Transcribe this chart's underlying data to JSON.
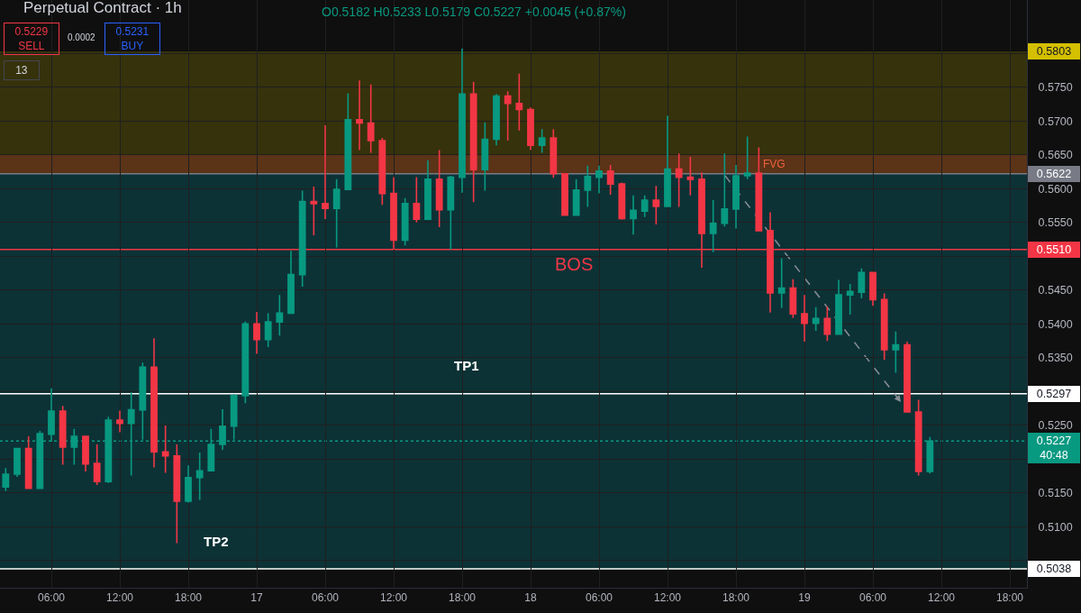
{
  "chart_data": {
    "type": "candlestick",
    "title": "Perpetual Contract · 1h",
    "categories": [
      null,
      null,
      null,
      null,
      "06:00",
      null,
      null,
      null,
      null,
      null,
      "12:00",
      null,
      null,
      null,
      null,
      null,
      "18:00",
      null,
      null,
      null,
      null,
      null,
      "17",
      null,
      null,
      null,
      null,
      null,
      "06:00",
      null,
      null,
      null,
      null,
      null,
      "12:00",
      null,
      null,
      null,
      null,
      null,
      "18:00",
      null,
      null,
      null,
      null,
      null,
      "18",
      null,
      null,
      null,
      null,
      null,
      "06:00",
      null,
      null,
      null,
      null,
      null,
      "12:00",
      null,
      null,
      null,
      null,
      null,
      "18:00",
      null,
      null,
      null,
      null,
      null,
      "19",
      null,
      null,
      null,
      null,
      null,
      "06:00",
      null,
      null,
      null,
      null,
      null,
      "12:00",
      null,
      null,
      null,
      null,
      null,
      "18:00",
      null
    ],
    "ohlc": [
      [
        0.5159,
        0.5187,
        0.5153,
        0.5178
      ],
      [
        0.5178,
        0.5216,
        0.5174,
        0.5216
      ],
      [
        0.5216,
        0.5234,
        0.5156,
        0.5157
      ],
      [
        0.5157,
        0.5242,
        0.5156,
        0.5238
      ],
      [
        0.5237,
        0.5305,
        0.5226,
        0.5271
      ],
      [
        0.5271,
        0.5279,
        0.5192,
        0.5218
      ],
      [
        0.5218,
        0.5245,
        0.5192,
        0.5234
      ],
      [
        0.5234,
        0.5234,
        0.5182,
        0.5193
      ],
      [
        0.5194,
        0.5222,
        0.5162,
        0.5167
      ],
      [
        0.5167,
        0.5263,
        0.5165,
        0.5258
      ],
      [
        0.5258,
        0.5272,
        0.524,
        0.5253
      ],
      [
        0.5253,
        0.5299,
        0.5176,
        0.5273
      ],
      [
        0.5273,
        0.5343,
        0.5229,
        0.5336
      ],
      [
        0.5336,
        0.5379,
        0.5188,
        0.5211
      ],
      [
        0.5211,
        0.525,
        0.518,
        0.5205
      ],
      [
        0.5205,
        0.5222,
        0.5076,
        0.5138
      ],
      [
        0.5138,
        0.5191,
        0.5136,
        0.5173
      ],
      [
        0.5173,
        0.521,
        0.514,
        0.5183
      ],
      [
        0.5183,
        0.5245,
        0.5182,
        0.5222
      ],
      [
        0.5222,
        0.5274,
        0.5214,
        0.5249
      ],
      [
        0.5249,
        0.5296,
        0.5229,
        0.5294
      ],
      [
        0.5294,
        0.5404,
        0.5283,
        0.54
      ],
      [
        0.54,
        0.5418,
        0.5356,
        0.5377
      ],
      [
        0.5377,
        0.5416,
        0.5366,
        0.5403
      ],
      [
        0.5403,
        0.5443,
        0.5383,
        0.5416
      ],
      [
        0.5416,
        0.5508,
        0.5415,
        0.5473
      ],
      [
        0.5473,
        0.5597,
        0.5455,
        0.5581
      ],
      [
        0.5581,
        0.5603,
        0.5531,
        0.5578
      ],
      [
        0.5578,
        0.5694,
        0.5555,
        0.5571
      ],
      [
        0.5571,
        0.5614,
        0.5513,
        0.5599
      ],
      [
        0.5599,
        0.5741,
        0.5598,
        0.5702
      ],
      [
        0.5702,
        0.576,
        0.5657,
        0.5697
      ],
      [
        0.5697,
        0.5754,
        0.5653,
        0.5671
      ],
      [
        0.5671,
        0.5675,
        0.5576,
        0.5593
      ],
      [
        0.5593,
        0.5617,
        0.551,
        0.5524
      ],
      [
        0.5524,
        0.5586,
        0.5516,
        0.5578
      ],
      [
        0.5578,
        0.5617,
        0.555,
        0.5555
      ],
      [
        0.5555,
        0.5642,
        0.5554,
        0.5614
      ],
      [
        0.5614,
        0.5657,
        0.5543,
        0.5569
      ],
      [
        0.5569,
        0.5619,
        0.551,
        0.5617
      ],
      [
        0.5617,
        0.5807,
        0.5594,
        0.574
      ],
      [
        0.574,
        0.5758,
        0.558,
        0.5628
      ],
      [
        0.5628,
        0.5698,
        0.5597,
        0.5673
      ],
      [
        0.5673,
        0.574,
        0.5664,
        0.5737
      ],
      [
        0.5737,
        0.5744,
        0.5671,
        0.5726
      ],
      [
        0.5726,
        0.577,
        0.5686,
        0.5717
      ],
      [
        0.5717,
        0.572,
        0.5657,
        0.5664
      ],
      [
        0.5664,
        0.5688,
        0.5653,
        0.5675
      ],
      [
        0.5675,
        0.5688,
        0.5616,
        0.5622
      ],
      [
        0.5622,
        0.5623,
        0.556,
        0.5561
      ],
      [
        0.5561,
        0.5614,
        0.556,
        0.5598
      ],
      [
        0.5598,
        0.5634,
        0.5573,
        0.5618
      ],
      [
        0.5617,
        0.5634,
        0.5593,
        0.5626
      ],
      [
        0.5626,
        0.5635,
        0.5591,
        0.5607
      ],
      [
        0.5607,
        0.5609,
        0.5554,
        0.5556
      ],
      [
        0.5556,
        0.559,
        0.5532,
        0.5568
      ],
      [
        0.5567,
        0.559,
        0.5558,
        0.5583
      ],
      [
        0.5583,
        0.5604,
        0.5547,
        0.5574
      ],
      [
        0.5574,
        0.5708,
        0.5573,
        0.5629
      ],
      [
        0.5629,
        0.5652,
        0.5573,
        0.5617
      ],
      [
        0.5617,
        0.5647,
        0.559,
        0.5614
      ],
      [
        0.5614,
        0.5624,
        0.5483,
        0.5534
      ],
      [
        0.5534,
        0.5583,
        0.5506,
        0.5549
      ],
      [
        0.5549,
        0.5652,
        0.5544,
        0.557
      ],
      [
        0.557,
        0.5635,
        0.5541,
        0.5619
      ],
      [
        0.5619,
        0.5677,
        0.5614,
        0.5623
      ],
      [
        0.5623,
        0.5661,
        0.5538,
        0.5538
      ],
      [
        0.5538,
        0.5565,
        0.5417,
        0.5446
      ],
      [
        0.5446,
        0.5497,
        0.5424,
        0.5453
      ],
      [
        0.5453,
        0.5466,
        0.5409,
        0.5415
      ],
      [
        0.5415,
        0.5443,
        0.5374,
        0.5401
      ],
      [
        0.5401,
        0.5425,
        0.539,
        0.5408
      ],
      [
        0.5408,
        0.5426,
        0.5375,
        0.5385
      ],
      [
        0.5385,
        0.5465,
        0.5384,
        0.5443
      ],
      [
        0.5443,
        0.5459,
        0.5414,
        0.5448
      ],
      [
        0.5447,
        0.5482,
        0.5438,
        0.5476
      ],
      [
        0.5476,
        0.5477,
        0.5427,
        0.5436
      ],
      [
        0.5436,
        0.5445,
        0.5347,
        0.5362
      ],
      [
        0.5362,
        0.5389,
        0.5328,
        0.5369
      ],
      [
        0.5369,
        0.5374,
        0.527,
        0.527
      ],
      [
        0.527,
        0.5288,
        0.5176,
        0.5182
      ],
      [
        0.5182,
        0.5233,
        0.5179,
        0.5227
      ],
      null,
      null,
      null,
      null,
      null,
      null,
      null,
      null
    ],
    "colors": [
      "#089981",
      "#089981",
      "#f23645",
      "#089981",
      "#089981",
      "#f23645",
      "#089981",
      "#f23645",
      "#f23645",
      "#089981",
      "#f23645",
      "#089981",
      "#089981",
      "#f23645",
      "#f23645",
      "#f23645",
      "#089981",
      "#089981",
      "#089981",
      "#089981",
      "#089981",
      "#089981",
      "#f23645",
      "#089981",
      "#089981",
      "#089981",
      "#089981",
      "#f23645",
      "#f23645",
      "#089981",
      "#089981",
      "#f23645",
      "#f23645",
      "#f23645",
      "#f23645",
      "#089981",
      "#f23645",
      "#089981",
      "#f23645",
      "#089981",
      "#089981",
      "#f23645",
      "#089981",
      "#089981",
      "#f23645",
      "#f23645",
      "#f23645",
      "#089981",
      "#f23645",
      "#f23645",
      "#089981",
      "#089981",
      "#089981",
      "#f23645",
      "#f23645",
      "#089981",
      "#089981",
      "#f23645",
      "#089981",
      "#f23645",
      "#f23645",
      "#f23645",
      "#089981",
      "#089981",
      "#089981",
      "#089981",
      "#f23645",
      "#f23645",
      "#089981",
      "#f23645",
      "#f23645",
      "#089981",
      "#f23645",
      "#089981",
      "#089981",
      "#089981",
      "#f23645",
      "#f23645",
      "#089981",
      "#f23645",
      "#f23645",
      "#089981",
      null,
      null,
      null,
      null,
      null,
      null,
      null,
      null
    ],
    "ylim": [
      0.501,
      0.5879
    ],
    "yticks": [
      {
        "value": 0.505,
        "label": null
      },
      {
        "value": 0.51,
        "label": "0.5100"
      },
      {
        "value": 0.515,
        "label": "0.5150"
      },
      {
        "value": 0.52,
        "label": null
      },
      {
        "value": 0.525,
        "label": "0.5250"
      },
      {
        "value": 0.53,
        "label": null
      },
      {
        "value": 0.535,
        "label": "0.5350"
      },
      {
        "value": 0.54,
        "label": "0.5400"
      },
      {
        "value": 0.545,
        "label": "0.5450"
      },
      {
        "value": 0.55,
        "label": null
      },
      {
        "value": 0.555,
        "label": "0.5550"
      },
      {
        "value": 0.56,
        "label": "0.5600"
      },
      {
        "value": 0.565,
        "label": "0.5650"
      },
      {
        "value": 0.57,
        "label": "0.5700"
      },
      {
        "value": 0.575,
        "label": "0.5750"
      },
      {
        "value": 0.58,
        "label": null
      }
    ],
    "grid": true,
    "bands": [
      {
        "axis": "y",
        "from": 0.5622,
        "to": 0.5803,
        "color": "#d4bf00",
        "label": "0.5803"
      },
      {
        "axis": "y",
        "from": 0.5038,
        "to": 0.5622,
        "color": "#00bcd4"
      },
      {
        "axis": "y",
        "from": 0.5622,
        "to": 0.565,
        "color": "#f23645"
      }
    ],
    "ref_lines": [
      {
        "axis": "y",
        "value": 0.5622,
        "color": "#787b86",
        "label": "0.5622"
      },
      {
        "axis": "y",
        "value": 0.551,
        "color": "#f23645",
        "label": "0.5510"
      },
      {
        "axis": "y",
        "value": 0.5297,
        "color": "#ffffff",
        "label": "0.5297"
      },
      {
        "axis": "y",
        "value": 0.5227,
        "color": "#089981",
        "line_style": "dotted",
        "label": "0.5227\n40:48"
      },
      {
        "axis": "y",
        "value": 0.5038,
        "color": "#ffffff",
        "label": "0.5038"
      }
    ],
    "annotations": [
      "O0.5182 H0.5233 L0.5179 C0.5227 +0.0045 (+0.87%)",
      "0.5229\nSELL",
      "0.0002",
      "0.5231\nBUY",
      "13",
      "FVG",
      "BOS",
      "TP1",
      "TP2"
    ]
  }
}
